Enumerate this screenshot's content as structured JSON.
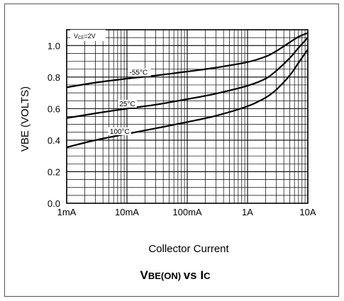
{
  "chart_data": {
    "type": "line",
    "title": {
      "parts": [
        {
          "text": "V",
          "size": "big"
        },
        {
          "text": "BE(ON) ",
          "size": "small"
        },
        {
          "text": "vs I",
          "size": "big"
        },
        {
          "text": "C",
          "size": "small"
        }
      ]
    },
    "xlabel": "Collector Current",
    "ylabel": "VBE  (VOLTS)",
    "x_scale": "log",
    "x_unit_note": "values in amperes",
    "xlim": [
      0.001,
      10
    ],
    "ylim": [
      0.0,
      1.1
    ],
    "x_ticks": [
      {
        "value": 0.001,
        "label": "1mA"
      },
      {
        "value": 0.01,
        "label": "10mA"
      },
      {
        "value": 0.1,
        "label": "100mA"
      },
      {
        "value": 1,
        "label": "1A"
      },
      {
        "value": 10,
        "label": "10A"
      }
    ],
    "y_ticks": [
      {
        "value": 0.0,
        "label": "0.0"
      },
      {
        "value": 0.2,
        "label": "0.2"
      },
      {
        "value": 0.4,
        "label": "0.4"
      },
      {
        "value": 0.6,
        "label": "0.6"
      },
      {
        "value": 0.8,
        "label": "0.8"
      },
      {
        "value": 1.0,
        "label": "1.0"
      }
    ],
    "grid": true,
    "condition_label": {
      "main": "V",
      "sub": "CE",
      "rest": "=2V"
    },
    "series": [
      {
        "name": "-55°C",
        "x": [
          0.001,
          0.003,
          0.01,
          0.03,
          0.1,
          0.3,
          1,
          2,
          3,
          5,
          7,
          10
        ],
        "y": [
          0.735,
          0.765,
          0.79,
          0.81,
          0.835,
          0.86,
          0.895,
          0.93,
          0.965,
          1.02,
          1.055,
          1.08
        ]
      },
      {
        "name": "25°C",
        "x": [
          0.001,
          0.003,
          0.01,
          0.03,
          0.1,
          0.3,
          1,
          2,
          3,
          5,
          7,
          10
        ],
        "y": [
          0.54,
          0.57,
          0.6,
          0.625,
          0.66,
          0.695,
          0.745,
          0.79,
          0.84,
          0.92,
          0.985,
          1.05
        ]
      },
      {
        "name": "100°C",
        "x": [
          0.001,
          0.003,
          0.01,
          0.03,
          0.1,
          0.3,
          1,
          2,
          3,
          5,
          7,
          10
        ],
        "y": [
          0.355,
          0.4,
          0.44,
          0.475,
          0.515,
          0.555,
          0.615,
          0.67,
          0.72,
          0.81,
          0.89,
          0.975
        ]
      }
    ]
  }
}
